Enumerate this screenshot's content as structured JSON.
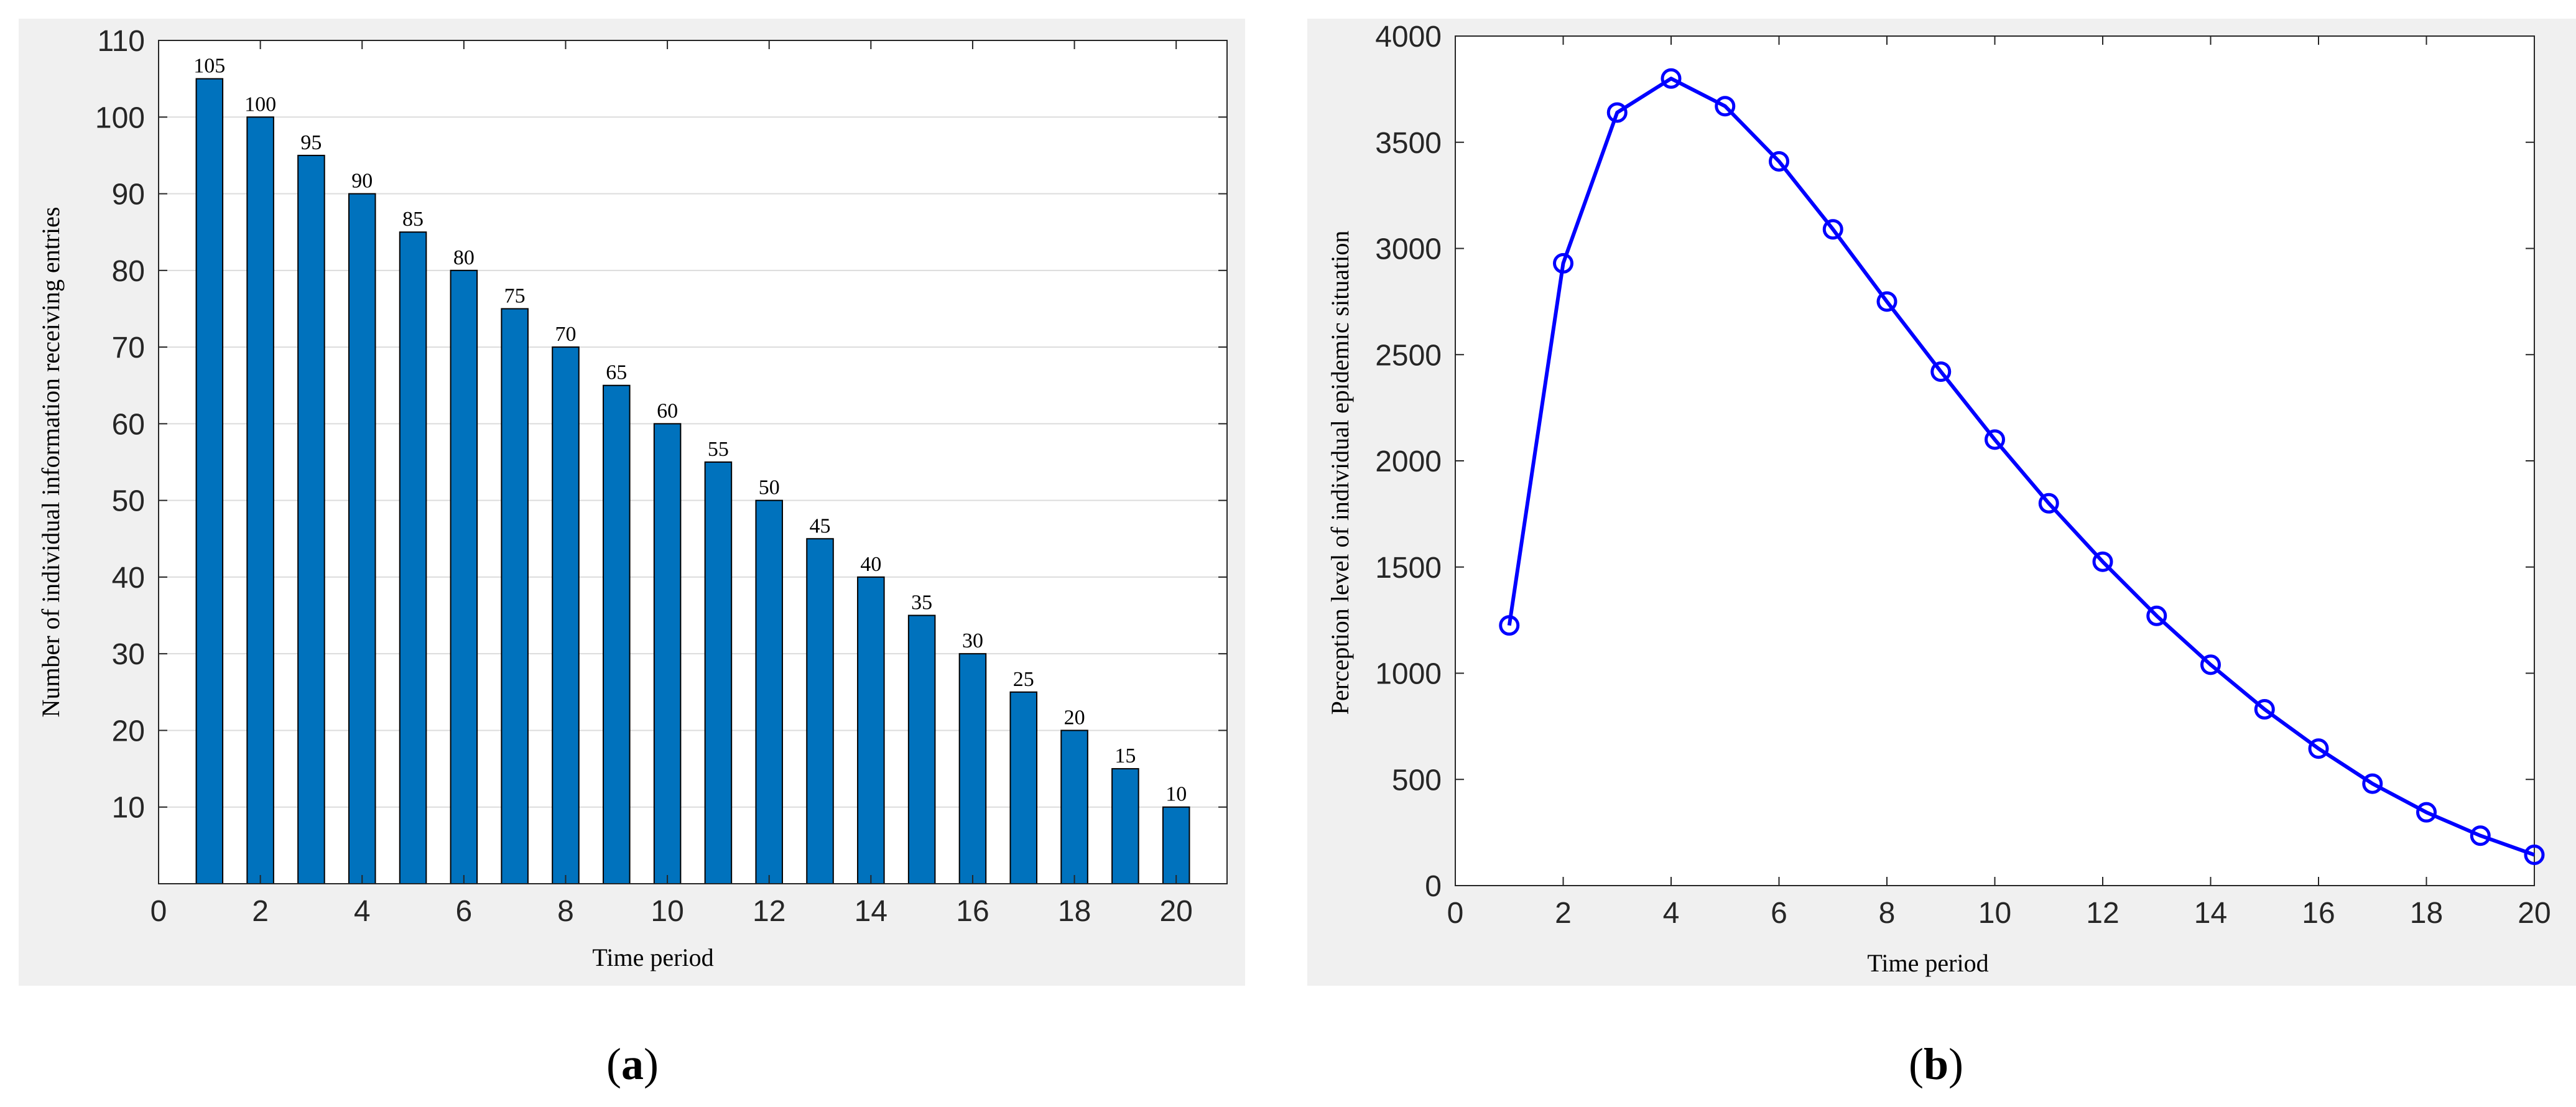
{
  "chart_data": [
    {
      "type": "bar",
      "caption_letter": "a",
      "xlabel": "Time period",
      "ylabel": "Number of individual information receiving entries",
      "x": [
        1,
        2,
        3,
        4,
        5,
        6,
        7,
        8,
        9,
        10,
        11,
        12,
        13,
        14,
        15,
        16,
        17,
        18,
        19,
        20
      ],
      "values": [
        105,
        100,
        95,
        90,
        85,
        80,
        75,
        70,
        65,
        60,
        55,
        50,
        45,
        40,
        35,
        30,
        25,
        20,
        15,
        10
      ],
      "data_labels": [
        "105",
        "100",
        "95",
        "90",
        "85",
        "80",
        "75",
        "70",
        "65",
        "60",
        "55",
        "50",
        "45",
        "40",
        "35",
        "30",
        "25",
        "20",
        "15",
        "10"
      ],
      "xlim": [
        0,
        21
      ],
      "ylim": [
        0,
        110
      ],
      "xticks": [
        0,
        2,
        4,
        6,
        8,
        10,
        12,
        14,
        16,
        18,
        20
      ],
      "yticks": [
        10,
        20,
        30,
        40,
        50,
        60,
        70,
        80,
        90,
        100,
        110
      ],
      "grid": "horizontal",
      "colors": {
        "bar": "#0072BD",
        "bar_edge": "#000000",
        "grid": "#dcdcdc",
        "panel": "#f0f0f0"
      }
    },
    {
      "type": "line",
      "caption_letter": "b",
      "xlabel": "Time period",
      "ylabel": "Perception level of individual epidemic situation",
      "x": [
        1,
        2,
        3,
        4,
        5,
        6,
        7,
        8,
        9,
        10,
        11,
        12,
        13,
        14,
        15,
        16,
        17,
        18,
        19,
        20
      ],
      "values": [
        1225,
        2930,
        3640,
        3800,
        3670,
        3410,
        3090,
        2750,
        2420,
        2100,
        1800,
        1525,
        1270,
        1040,
        830,
        645,
        480,
        345,
        235,
        145
      ],
      "xlim": [
        0,
        20
      ],
      "ylim": [
        0,
        4000
      ],
      "xticks": [
        0,
        2,
        4,
        6,
        8,
        10,
        12,
        14,
        16,
        18,
        20
      ],
      "yticks": [
        0,
        500,
        1000,
        1500,
        2000,
        2500,
        3000,
        3500,
        4000
      ],
      "grid": "none",
      "marker": "circle",
      "colors": {
        "line": "#0000FF",
        "panel": "#f0f0f0"
      }
    }
  ]
}
